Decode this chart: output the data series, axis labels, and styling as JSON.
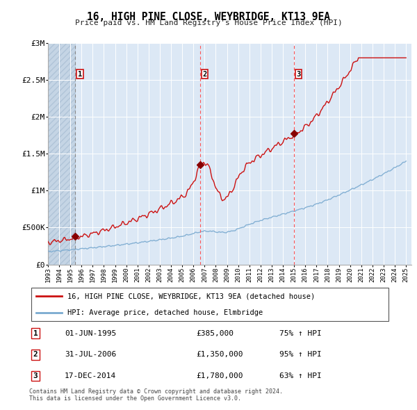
{
  "title": "16, HIGH PINE CLOSE, WEYBRIDGE, KT13 9EA",
  "subtitle": "Price paid vs. HM Land Registry's House Price Index (HPI)",
  "footer1": "Contains HM Land Registry data © Crown copyright and database right 2024.",
  "footer2": "This data is licensed under the Open Government Licence v3.0.",
  "legend_line1": "16, HIGH PINE CLOSE, WEYBRIDGE, KT13 9EA (detached house)",
  "legend_line2": "HPI: Average price, detached house, Elmbridge",
  "transactions": [
    {
      "label": "1",
      "date": "01-JUN-1995",
      "price": 385000,
      "pct": "75%",
      "x_year": 1995.42
    },
    {
      "label": "2",
      "date": "31-JUL-2006",
      "price": 1350000,
      "pct": "95%",
      "x_year": 2006.58
    },
    {
      "label": "3",
      "date": "17-DEC-2014",
      "price": 1780000,
      "pct": "63%",
      "x_year": 2014.96
    }
  ],
  "hpi_color": "#7aaad0",
  "price_color": "#cc1111",
  "marker_color": "#880000",
  "vline_color_red": "#ff5555",
  "vline_color_gray": "#888888",
  "background_plot": "#dce8f5",
  "background_hatch_face": "#c5d5e5",
  "grid_color": "#ffffff",
  "ylim": [
    0,
    3000000
  ],
  "xlim_start": 1993.0,
  "xlim_end": 2025.5,
  "hatch_end": 1995.42,
  "yticks": [
    0,
    500000,
    1000000,
    1500000,
    2000000,
    2500000,
    3000000
  ],
  "ytick_labels": [
    "£0",
    "£500K",
    "£1M",
    "£1.5M",
    "£2M",
    "£2.5M",
    "£3M"
  ]
}
